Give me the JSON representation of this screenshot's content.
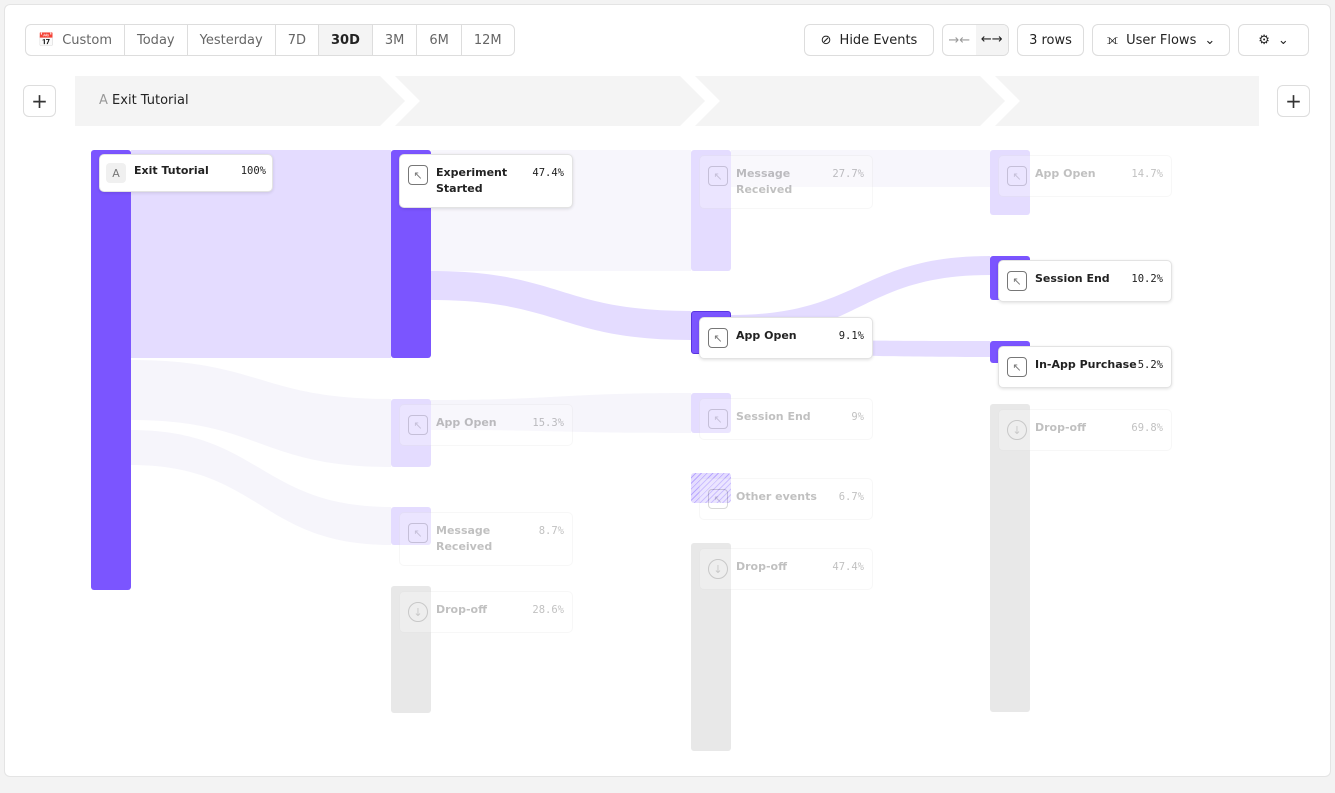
{
  "toolbar": {
    "date_ranges": [
      "Custom",
      "Today",
      "Yesterday",
      "7D",
      "30D",
      "3M",
      "6M",
      "12M"
    ],
    "selected_range": "30D",
    "hide_events": "Hide Events",
    "rows": "3 rows",
    "view": "User Flows"
  },
  "steps": {
    "first_step_letter": "A",
    "first_step": "Exit Tutorial"
  },
  "colors": {
    "accent": "#7b55ff",
    "light": "#e4dcff",
    "dropoff": "#e6e6e6"
  },
  "nodes": {
    "c1": [
      {
        "label": "Exit Tutorial",
        "pct": "100%",
        "icon": "A"
      }
    ],
    "c2": [
      {
        "label": "Experiment Started",
        "pct": "47.4%"
      },
      {
        "label": "App Open",
        "pct": "15.3%"
      },
      {
        "label": "Message Received",
        "pct": "8.7%"
      },
      {
        "label": "Drop-off",
        "pct": "28.6%"
      }
    ],
    "c3": [
      {
        "label": "Message Received",
        "pct": "27.7%"
      },
      {
        "label": "App Open",
        "pct": "9.1%"
      },
      {
        "label": "Session End",
        "pct": "9%"
      },
      {
        "label": "Other events",
        "pct": "6.7%"
      },
      {
        "label": "Drop-off",
        "pct": "47.4%"
      }
    ],
    "c4": [
      {
        "label": "App Open",
        "pct": "14.7%"
      },
      {
        "label": "Session End",
        "pct": "10.2%"
      },
      {
        "label": "In-App Purchase",
        "pct": "5.2%"
      },
      {
        "label": "Drop-off",
        "pct": "69.8%"
      }
    ]
  }
}
